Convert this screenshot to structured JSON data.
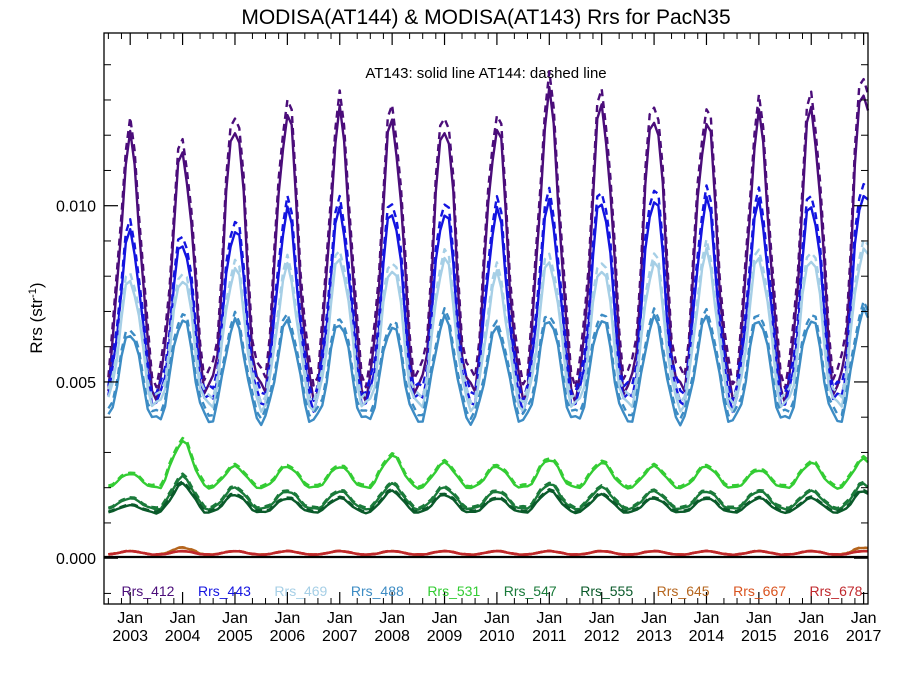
{
  "chart_data": {
    "type": "line",
    "title": "MODISA(AT144) & MODISA(AT143)  Rrs for PacN35",
    "annotation": "AT143: solid line   AT144: dashed line",
    "ylabel": "Rrs (str",
    "ylabel_sup": "-1",
    "ylabel_close": ")",
    "ylim": [
      -0.0013,
      0.0149
    ],
    "xlim": [
      "2002-07",
      "2017-02"
    ],
    "yticks": [
      0.0,
      0.005,
      0.01
    ],
    "ytick_labels": [
      "0.000",
      "0.005",
      "0.010"
    ],
    "xtick_month": "Jan",
    "xtick_years": [
      "2003",
      "2004",
      "2005",
      "2006",
      "2007",
      "2008",
      "2009",
      "2010",
      "2011",
      "2012",
      "2013",
      "2014",
      "2015",
      "2016",
      "2017"
    ],
    "zero_line": true,
    "line_styles": {
      "AT143": "solid",
      "AT144": "dashed"
    },
    "series": [
      {
        "name": "Rrs_412",
        "color": "#4b0d7a",
        "min": 0.0047,
        "peaks": [
          0.0118,
          0.0115,
          0.0124,
          0.0126,
          0.0125,
          0.0124,
          0.0124,
          0.0122,
          0.013,
          0.0128,
          0.0127,
          0.0124,
          0.0124,
          0.0127,
          0.0135
        ]
      },
      {
        "name": "Rrs_443",
        "color": "#1414e0",
        "min": 0.0044,
        "peaks": [
          0.0092,
          0.009,
          0.0094,
          0.0098,
          0.0098,
          0.0099,
          0.0099,
          0.0098,
          0.01,
          0.0102,
          0.0103,
          0.0101,
          0.01,
          0.0101,
          0.0105
        ]
      },
      {
        "name": "Rrs_469",
        "color": "#a6cfe6",
        "min": 0.0043,
        "peaks": [
          0.0079,
          0.008,
          0.0082,
          0.0082,
          0.0085,
          0.0083,
          0.0085,
          0.008,
          0.0084,
          0.0083,
          0.0084,
          0.0086,
          0.0085,
          0.0086,
          0.0088
        ]
      },
      {
        "name": "Rrs_488",
        "color": "#3d8cc4",
        "min": 0.0039,
        "peaks": [
          0.0064,
          0.0068,
          0.0067,
          0.0067,
          0.0067,
          0.0066,
          0.0068,
          0.0065,
          0.0068,
          0.0068,
          0.0068,
          0.0068,
          0.0068,
          0.0068,
          0.007
        ]
      },
      {
        "name": "Rrs_531",
        "color": "#33cc33",
        "min": 0.002,
        "peaks": [
          0.0024,
          0.0033,
          0.0026,
          0.0026,
          0.0026,
          0.0029,
          0.0027,
          0.0026,
          0.0028,
          0.0027,
          0.0026,
          0.0026,
          0.0025,
          0.0027,
          0.0028
        ]
      },
      {
        "name": "Rrs_547",
        "color": "#1a7a3a",
        "min": 0.0014,
        "peaks": [
          0.0017,
          0.0023,
          0.002,
          0.0019,
          0.0019,
          0.0021,
          0.002,
          0.0019,
          0.0021,
          0.002,
          0.0019,
          0.0019,
          0.0019,
          0.0019,
          0.0021
        ]
      },
      {
        "name": "Rrs_555",
        "color": "#0a5a2a",
        "min": 0.0013,
        "peaks": [
          0.0015,
          0.0021,
          0.0018,
          0.0017,
          0.0017,
          0.0019,
          0.0018,
          0.0017,
          0.0019,
          0.0018,
          0.0017,
          0.0017,
          0.0017,
          0.0017,
          0.0019
        ]
      },
      {
        "name": "Rrs_645",
        "color": "#b5651d",
        "min": 0.0001,
        "peaks": [
          0.0002,
          0.0003,
          0.0002,
          0.0002,
          0.0002,
          0.0002,
          0.0002,
          0.0002,
          0.0002,
          0.0002,
          0.0002,
          0.0002,
          0.0002,
          0.0002,
          0.0003
        ]
      },
      {
        "name": "Rrs_667",
        "color": "#d9531e",
        "min": 0.0001,
        "peaks": [
          0.0002,
          0.0002,
          0.0002,
          0.0002,
          0.0002,
          0.0002,
          0.0002,
          0.0002,
          0.0002,
          0.0002,
          0.0002,
          0.0002,
          0.0002,
          0.0002,
          0.0002
        ]
      },
      {
        "name": "Rrs_678",
        "color": "#c0282d",
        "min": 0.0001,
        "peaks": [
          0.0002,
          0.0002,
          0.0002,
          0.0002,
          0.0002,
          0.0002,
          0.0002,
          0.0002,
          0.0002,
          0.0002,
          0.0002,
          0.0002,
          0.0002,
          0.0002,
          0.0002
        ]
      }
    ]
  }
}
